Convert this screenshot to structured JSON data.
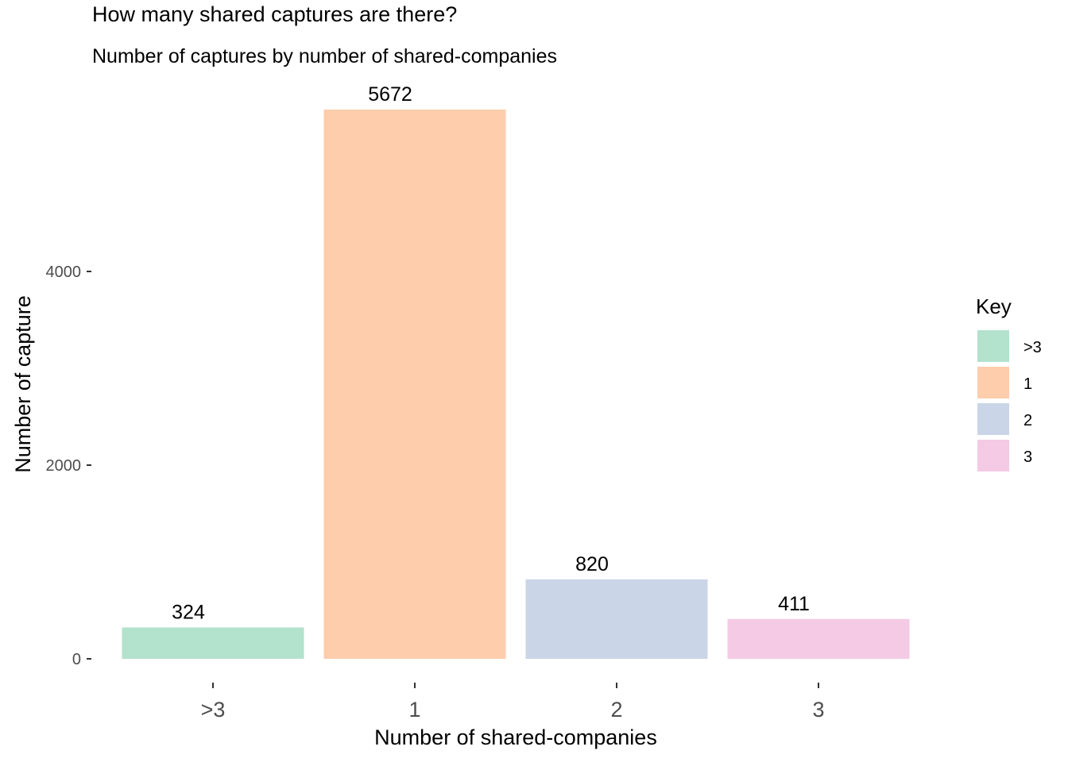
{
  "chart_data": {
    "type": "bar",
    "title": "How many shared captures are there?",
    "subtitle": "Number of captures by number of shared-companies",
    "xlabel": "Number of shared-companies",
    "ylabel": "Number of capture",
    "categories": [
      ">3",
      "1",
      "2",
      "3"
    ],
    "values": [
      324,
      5672,
      820,
      411
    ],
    "data_labels": [
      "324",
      "5672",
      "820",
      "411"
    ],
    "colors": [
      "#b3e2cd",
      "#fdcdac",
      "#cbd5e8",
      "#f4cae4"
    ],
    "yticks": [
      0,
      2000,
      4000
    ],
    "ytick_labels": [
      "0",
      "2000",
      "4000"
    ],
    "ylim": [
      0,
      5672
    ],
    "grid": false,
    "legend": {
      "title": "Key",
      "position": "right",
      "entries": [
        ">3",
        "1",
        "2",
        "3"
      ]
    }
  }
}
